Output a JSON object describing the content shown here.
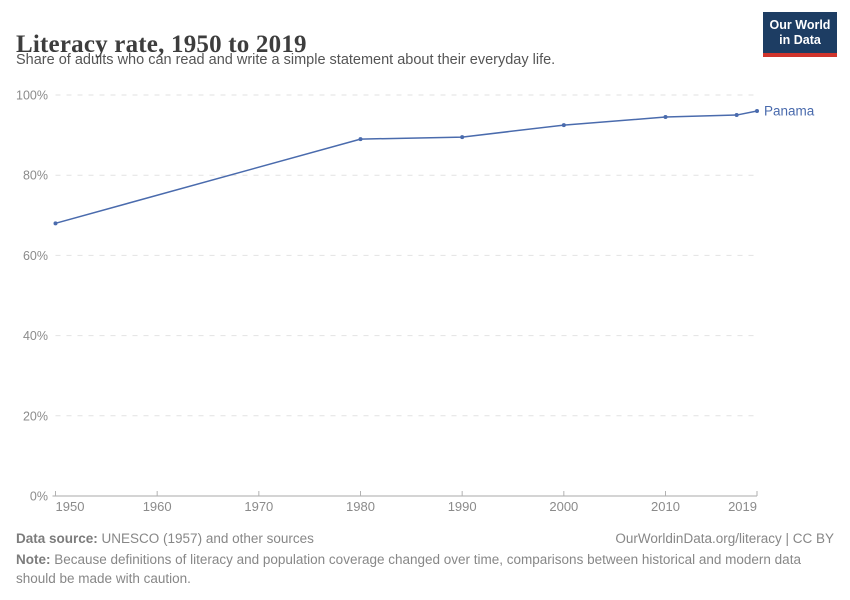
{
  "header": {
    "title": "Literacy rate, 1950 to 2019",
    "subtitle": "Share of adults who can read and write a simple statement about their everyday life.",
    "logo_line1": "Our World",
    "logo_line2": "in Data"
  },
  "chart_data": {
    "type": "line",
    "title": "Literacy rate, 1950 to 2019",
    "xlabel": "",
    "ylabel": "",
    "xlim": [
      1950,
      2019
    ],
    "ylim": [
      0,
      100
    ],
    "x_ticks": [
      1950,
      1960,
      1970,
      1980,
      1990,
      2000,
      2010,
      2019
    ],
    "y_ticks": [
      0,
      20,
      40,
      60,
      80,
      100
    ],
    "y_tick_suffix": "%",
    "grid": "horizontal-dashed",
    "legend_position": "end-of-line-label",
    "series": [
      {
        "name": "Panama",
        "color": "#4a6bad",
        "points": [
          [
            1950,
            68
          ],
          [
            1980,
            89
          ],
          [
            1990,
            89.5
          ],
          [
            2000,
            92.5
          ],
          [
            2010,
            94.5
          ],
          [
            2017,
            95
          ],
          [
            2019,
            96
          ]
        ]
      }
    ]
  },
  "footer": {
    "source_label": "Data source:",
    "source_text": " UNESCO (1957) and other sources",
    "link_text": "OurWorldinData.org/literacy | CC BY",
    "note_label": "Note:",
    "note_text": " Because definitions of literacy and population coverage changed over time, comparisons between historical and modern data should be made with caution."
  },
  "colors": {
    "accent_line": "#4a6bad",
    "grid": "#e2e2e2",
    "axis": "#a8a8a8",
    "tick": "#b2b2b2",
    "tick_label": "#8b8b8b",
    "logo_navy": "#1d3d63",
    "logo_red": "#d0342c"
  }
}
